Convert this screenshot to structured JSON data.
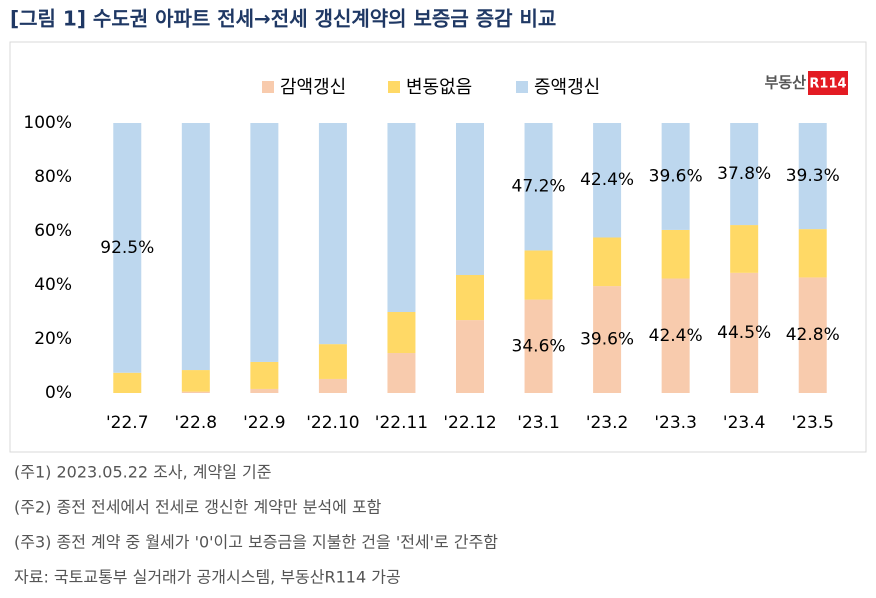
{
  "chart_data": {
    "type": "stacked-bar",
    "title": "[그림 1] 수도권 아파트 전세→전세 갱신계약의 보증금 증감 비교",
    "logo": "부동산",
    "logo_badge": "R114",
    "categories": [
      "'22.7",
      "'22.8",
      "'22.9",
      "'22.10",
      "'22.11",
      "'22.12",
      "'23.1",
      "'23.2",
      "'23.3",
      "'23.4",
      "'23.5"
    ],
    "series": [
      {
        "name": "감액갱신",
        "color": "#f8cbad",
        "values": [
          0,
          0.5,
          1.5,
          5.2,
          14.8,
          27,
          34.6,
          39.6,
          42.4,
          44.5,
          42.8
        ],
        "value_labels": [
          null,
          null,
          null,
          null,
          null,
          null,
          "34.6%",
          "39.6%",
          "42.4%",
          "44.5%",
          "42.8%"
        ]
      },
      {
        "name": "변동없음",
        "color": "#ffd966",
        "values": [
          7.5,
          8,
          10,
          12.9,
          15.2,
          16.7,
          18.2,
          18,
          18,
          17.7,
          17.9
        ]
      },
      {
        "name": "증액갱신",
        "color": "#bdd7ee",
        "values": [
          92.5,
          91.5,
          88.5,
          81.9,
          70,
          56.3,
          47.2,
          42.4,
          39.6,
          37.8,
          39.3
        ],
        "value_labels": [
          "92.5%",
          null,
          null,
          null,
          null,
          null,
          "47.2%",
          "42.4%",
          "39.6%",
          "37.8%",
          "39.3%"
        ]
      }
    ],
    "ylim": [
      0,
      100
    ],
    "yticks": [
      {
        "value": 0,
        "label": "0%"
      },
      {
        "value": 20,
        "label": "20%"
      },
      {
        "value": 40,
        "label": "40%"
      },
      {
        "value": 60,
        "label": "60%"
      },
      {
        "value": 80,
        "label": "80%"
      },
      {
        "value": 100,
        "label": "100%"
      }
    ],
    "notes": [
      "(주1) 2023.05.22 조사, 계약일 기준",
      "(주2) 종전 전세에서 전세로 갱신한 계약만 분석에 포함",
      "(주3) 종전 계약 중 월세가 '0'이고 보증금을 지불한 건을 '전세'로 간주함",
      "자료: 국토교통부 실거래가 공개시스템, 부동산R114 가공"
    ]
  }
}
